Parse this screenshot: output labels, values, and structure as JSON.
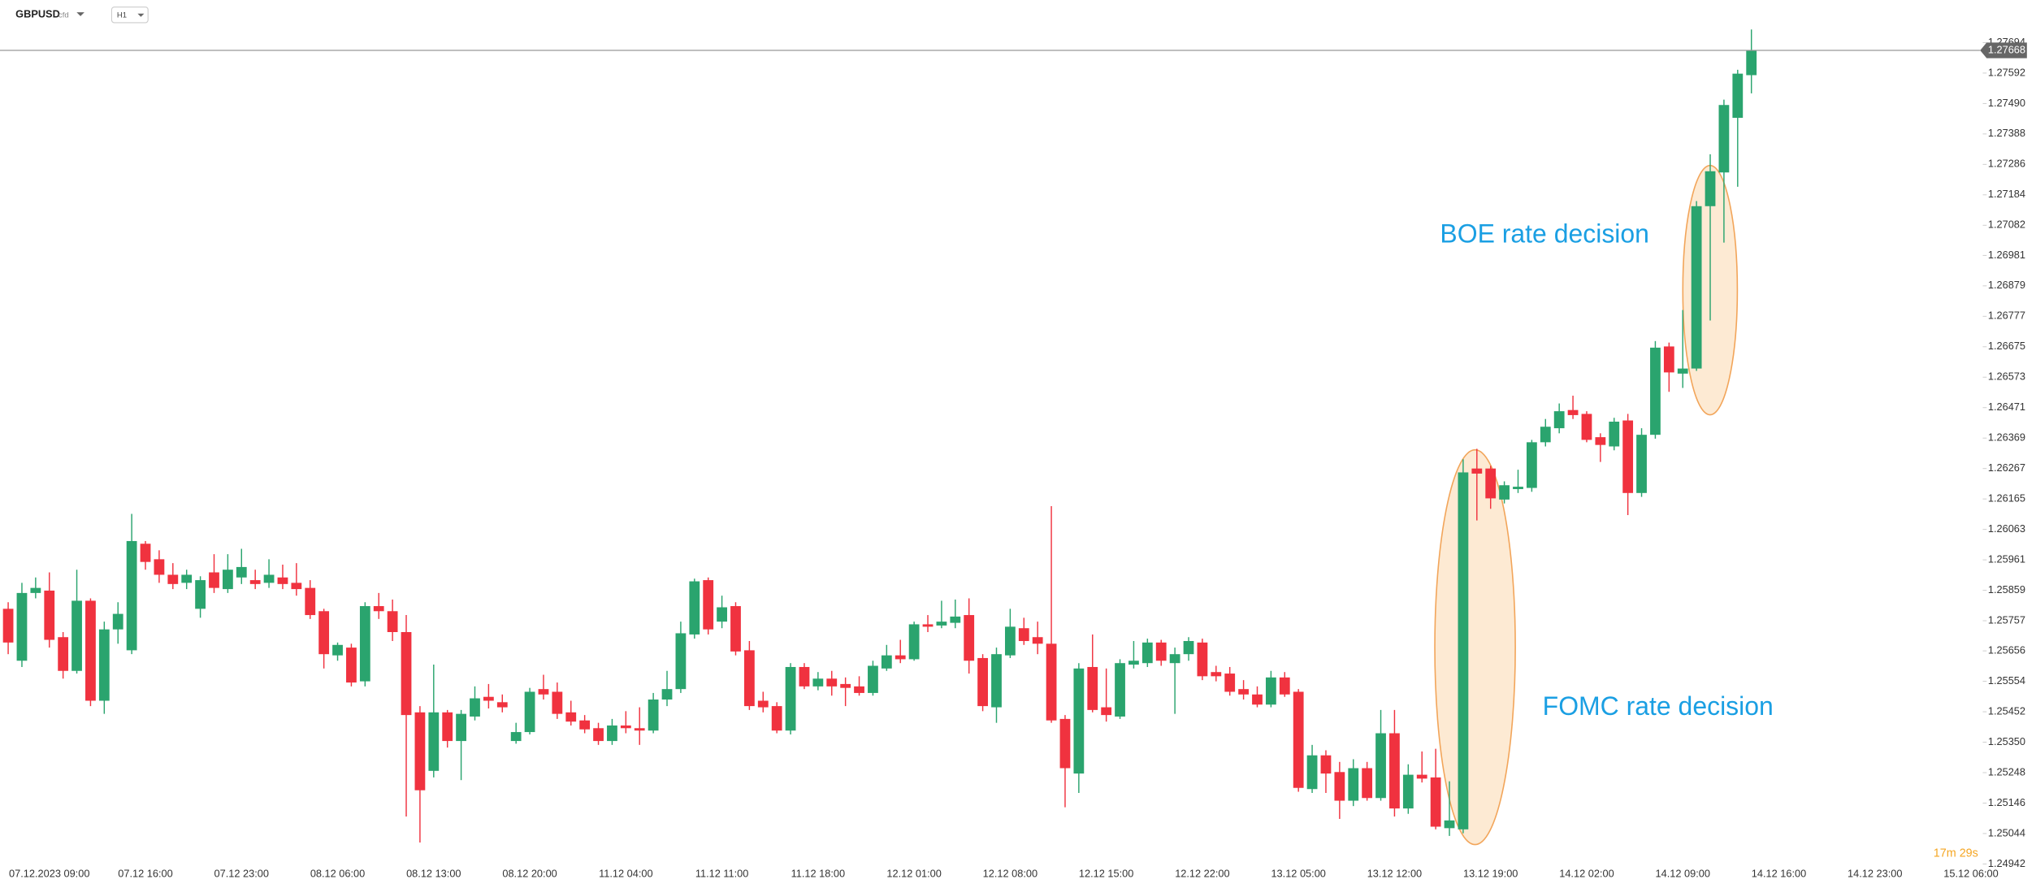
{
  "toolbar": {
    "symbol": "GBPUSD",
    "instrument_type": "cfd",
    "timeframe": "H1"
  },
  "chart_data": {
    "type": "candlestick",
    "up_color": "#2aa46e",
    "down_color": "#f0323f",
    "annotations": [
      "BOE rate decision",
      "FOMC rate decision"
    ],
    "last_price": 1.27668,
    "timer": "17m 29s",
    "ylim": [
      1.2492,
      1.2772
    ],
    "yticks": [
      1.27694,
      1.27592,
      {
        "value": 1.2749,
        "label": "1.27490"
      },
      1.27388,
      1.27286,
      1.27184,
      1.27082,
      1.26981,
      1.26879,
      1.26777,
      1.26675,
      1.26573,
      1.26471,
      1.26369,
      1.26267,
      1.26165,
      1.26063,
      1.25961,
      1.25859,
      1.25757,
      1.25656,
      1.25554,
      1.25452,
      {
        "value": 1.2535,
        "label": "1.25350"
      },
      1.25248,
      1.25146,
      1.25044,
      1.24942
    ],
    "categories": [
      null,
      null,
      null,
      "07.12.2023 09:00",
      null,
      null,
      null,
      null,
      null,
      null,
      "07.12 16:00",
      null,
      null,
      null,
      null,
      null,
      null,
      "07.12 23:00",
      null,
      null,
      null,
      null,
      null,
      null,
      "08.12 06:00",
      null,
      null,
      null,
      null,
      null,
      null,
      "08.12 13:00",
      null,
      null,
      null,
      null,
      null,
      null,
      "08.12 20:00",
      null,
      null,
      null,
      null,
      null,
      null,
      "11.12 04:00",
      null,
      null,
      null,
      null,
      null,
      null,
      "11.12 11:00",
      null,
      null,
      null,
      null,
      null,
      null,
      "11.12 18:00",
      null,
      null,
      null,
      null,
      null,
      null,
      "12.12 01:00",
      null,
      null,
      null,
      null,
      null,
      null,
      "12.12 08:00",
      null,
      null,
      null,
      null,
      null,
      null,
      "12.12 15:00",
      null,
      null,
      null,
      null,
      null,
      null,
      "12.12 22:00",
      null,
      null,
      null,
      null,
      null,
      null,
      "13.12 05:00",
      null,
      null,
      null,
      null,
      null,
      null,
      "13.12 12:00",
      null,
      null,
      null,
      null,
      null,
      null,
      "13.12 19:00",
      null,
      null,
      null,
      null,
      null,
      null,
      "14.12 02:00",
      null,
      null,
      null,
      null,
      null,
      null,
      "14.12 09:00",
      null,
      null,
      null,
      null,
      null,
      null,
      "14.12 16:00",
      null,
      null,
      null,
      null,
      null,
      null,
      "14.12 23:00",
      null,
      null,
      null,
      null,
      null,
      null,
      "15.12 06:00"
    ],
    "open": [
      1.25797,
      1.25623,
      1.2585,
      1.25858,
      1.25702,
      1.25589,
      1.25824,
      1.25489,
      1.25728,
      1.25658,
      1.26015,
      1.25963,
      1.25911,
      1.25884,
      1.25797,
      1.25919,
      1.25863,
      1.25902,
      1.25893,
      1.25884,
      1.25902,
      1.25884,
      1.25867,
      1.25789,
      1.25641,
      1.25667,
      1.25554,
      1.25806,
      1.25789,
      1.25719,
      1.2545,
      1.25254,
      1.2545,
      1.25354,
      1.25436,
      1.25502,
      1.25484,
      1.25354,
      1.25384,
      1.25528,
      1.25519,
      1.2545,
      1.25423,
      1.25397,
      1.25354,
      1.25406,
      1.25397,
      1.25389,
      1.25493,
      1.25528,
      1.25711,
      1.25893,
      1.25754,
      1.25806,
      1.25658,
      1.25489,
      1.25471,
      1.25389,
      1.25602,
      1.25537,
      1.25563,
      1.25545,
      1.25537,
      1.25515,
      1.25597,
      1.25641,
      1.25628,
      1.25745,
      1.25741,
      1.2575,
      1.25776,
      1.25632,
      1.25467,
      1.25641,
      1.25732,
      1.25702,
      1.2568,
      1.25428,
      1.25245,
      1.25602,
      1.25467,
      1.25436,
      1.2561,
      1.25615,
      1.25684,
      1.25615,
      1.25645,
      1.25684,
      1.25585,
      1.2558,
      1.25528,
      1.2551,
      1.25476,
      1.25567,
      1.25519,
      1.25193,
      1.25306,
      1.2525,
      1.25154,
      1.25263,
      1.25163,
      1.2538,
      1.25128,
      1.25241,
      1.25232,
      1.25062,
      1.25058,
      1.26267,
      1.26267,
      1.26163,
      1.26198,
      1.26202,
      1.26355,
      1.26402,
      1.26463,
      1.2645,
      1.26372,
      1.26341,
      1.26428,
      1.26185,
      1.2638,
      1.26676,
      1.26585,
      1.26602,
      1.27146,
      1.27259,
      1.27442,
      1.27585,
      null,
      null,
      null,
      null,
      null,
      null,
      null,
      null,
      null,
      null,
      null,
      null,
      null,
      null,
      null,
      null
    ],
    "high": [
      1.25819,
      1.25884,
      1.25902,
      1.25919,
      1.25719,
      1.25928,
      1.25832,
      1.25754,
      1.25819,
      1.26115,
      1.26024,
      1.25993,
      1.2595,
      1.25928,
      1.25906,
      1.2598,
      1.2598,
      1.25998,
      1.25928,
      1.25963,
      1.25945,
      1.2595,
      1.25893,
      1.25797,
      1.25684,
      1.2568,
      1.25819,
      1.2585,
      1.25828,
      1.25776,
      1.25471,
      1.2561,
      1.25458,
      1.25458,
      1.25537,
      1.25545,
      1.2551,
      1.25415,
      1.25532,
      1.25576,
      1.2555,
      1.25489,
      1.25441,
      1.25415,
      1.25428,
      1.25454,
      1.25467,
      1.25515,
      1.25589,
      1.25754,
      1.25898,
      1.25902,
      1.25841,
      1.25819,
      1.25689,
      1.25519,
      1.25484,
      1.25615,
      1.25615,
      1.25585,
      1.25589,
      1.25567,
      1.25571,
      1.25623,
      1.25676,
      1.25693,
      1.25754,
      1.25776,
      1.25824,
      1.25828,
      1.25832,
      1.25645,
      1.25667,
      1.25797,
      1.25767,
      1.25754,
      1.26141,
      1.25441,
      1.25615,
      1.25711,
      1.25597,
      1.25628,
      1.25689,
      1.25697,
      1.25693,
      1.25667,
      1.25702,
      1.25697,
      1.25606,
      1.25602,
      1.25558,
      1.25537,
      1.25589,
      1.25585,
      1.25528,
      1.25341,
      1.25323,
      1.25284,
      1.25293,
      1.25284,
      1.25458,
      1.25458,
      1.25276,
      1.25319,
      1.25328,
      1.25219,
      1.26298,
      1.26333,
      1.26276,
      1.26224,
      1.26263,
      1.26363,
      1.26433,
      1.26485,
      1.26511,
      1.26459,
      1.26385,
      1.26437,
      1.2645,
      1.26402,
      1.26694,
      1.26689,
      1.26798,
      1.27163,
      1.2732,
      1.27503,
      1.27603,
      1.27738,
      null,
      null,
      null,
      null,
      null,
      null,
      null,
      null,
      null,
      null,
      null,
      null,
      null,
      null,
      null,
      null
    ],
    "low": [
      1.25645,
      1.25602,
      1.25832,
      1.25667,
      1.25563,
      1.2558,
      1.25471,
      1.25445,
      1.2568,
      1.25645,
      1.25928,
      1.25884,
      1.25863,
      1.25863,
      1.25767,
      1.2585,
      1.2585,
      1.2588,
      1.25863,
      1.25867,
      1.25863,
      1.25841,
      1.25763,
      1.25597,
      1.25623,
      1.25537,
      1.25537,
      1.25763,
      1.25689,
      1.25101,
      1.25014,
      1.25232,
      1.25332,
      1.25223,
      1.25423,
      1.25463,
      1.2545,
      1.25345,
      1.25376,
      1.25493,
      1.25428,
      1.25406,
      1.2538,
      1.25341,
      1.25341,
      1.2538,
      1.25341,
      1.2538,
      1.25471,
      1.25515,
      1.25697,
      1.25711,
      1.25732,
      1.25641,
      1.25458,
      1.2545,
      1.2538,
      1.25376,
      1.25528,
      1.25524,
      1.25506,
      1.25471,
      1.25506,
      1.25506,
      1.25589,
      1.25615,
      1.25623,
      1.25719,
      1.25732,
      1.25732,
      1.2558,
      1.25454,
      1.25415,
      1.25632,
      1.25676,
      1.25645,
      1.25415,
      1.25132,
      1.2518,
      1.2545,
      1.25419,
      1.25428,
      1.25597,
      1.25602,
      1.25606,
      1.25445,
      1.25623,
      1.25558,
      1.25554,
      1.25506,
      1.25493,
      1.25467,
      1.25467,
      1.25502,
      1.25184,
      1.2518,
      1.2518,
      1.25093,
      1.25136,
      1.25154,
      1.25154,
      1.25101,
      1.2511,
      1.25215,
      1.25058,
      1.25036,
      1.25045,
      1.26093,
      1.26132,
      1.2615,
      1.26185,
      1.26189,
      1.26341,
      1.26385,
      1.26433,
      1.26355,
      1.26289,
      1.26328,
      1.26111,
      1.26172,
      1.26367,
      1.26524,
      1.26537,
      1.26594,
      1.26763,
      1.27024,
      1.27211,
      1.27524,
      null,
      null,
      null,
      null,
      null,
      null,
      null,
      null,
      null,
      null,
      null,
      null,
      null,
      null,
      null,
      null
    ],
    "close": [
      1.25684,
      1.2585,
      1.25867,
      1.25693,
      1.25589,
      1.25824,
      1.25489,
      1.25728,
      1.2578,
      1.26024,
      1.25954,
      1.25911,
      1.2588,
      1.25911,
      1.25893,
      1.25867,
      1.25928,
      1.25937,
      1.2588,
      1.25911,
      1.2588,
      1.25863,
      1.25776,
      1.25645,
      1.25676,
      1.2555,
      1.25806,
      1.25789,
      1.25719,
      1.25441,
      1.25189,
      1.2545,
      1.25354,
      1.25445,
      1.25497,
      1.25489,
      1.25467,
      1.25384,
      1.25519,
      1.2551,
      1.25445,
      1.25419,
      1.25393,
      1.25354,
      1.25406,
      1.25397,
      1.25389,
      1.25493,
      1.25528,
      1.25715,
      1.25889,
      1.25728,
      1.25802,
      1.25654,
      1.25471,
      1.25467,
      1.25389,
      1.25602,
      1.25537,
      1.25563,
      1.25537,
      1.25532,
      1.25515,
      1.25606,
      1.25641,
      1.25628,
      1.25745,
      1.25737,
      1.25754,
      1.25771,
      1.25623,
      1.25471,
      1.25645,
      1.25737,
      1.25689,
      1.2568,
      1.25423,
      1.25263,
      1.25597,
      1.25458,
      1.25441,
      1.25615,
      1.25623,
      1.25684,
      1.25623,
      1.25645,
      1.25689,
      1.25571,
      1.25571,
      1.25519,
      1.2551,
      1.25476,
      1.25567,
      1.2551,
      1.25197,
      1.25306,
      1.25245,
      1.25154,
      1.25263,
      1.25163,
      1.2538,
      1.25128,
      1.25241,
      1.25228,
      1.25067,
      1.25088,
      1.26254,
      1.2625,
      1.26167,
      1.26211,
      1.26206,
      1.26355,
      1.26407,
      1.26459,
      1.26446,
      1.26363,
      1.26346,
      1.26424,
      1.26185,
      1.2638,
      1.26672,
      1.26589,
      1.26602,
      1.27146,
      1.27263,
      1.27485,
      1.2759,
      1.27668,
      null,
      null,
      null,
      null,
      null,
      null,
      null,
      null,
      null,
      null,
      null,
      null,
      null,
      null,
      null,
      null
    ]
  }
}
